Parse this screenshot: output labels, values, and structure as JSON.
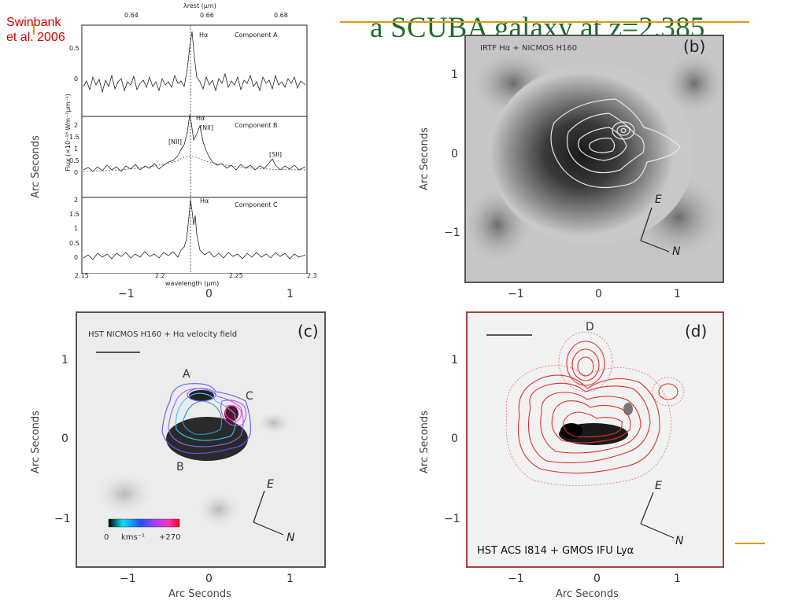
{
  "slide": {
    "title": "a SCUBA galaxy at z=2.385",
    "citation_line1": "Swinbank",
    "citation_line2": "et al.  2006",
    "accent_color": "#d89a10",
    "title_color": "#1f6b2b",
    "citation_color": "#d60000"
  },
  "panel_a": {
    "top_axis_label": "λrest (μm)",
    "top_ticks": [
      "0.64",
      "0.66",
      "0.68"
    ],
    "bottom_ticks": [
      "2.15",
      "2.2",
      "2.25",
      "2.3"
    ],
    "xlabel": "wavelength (μm)",
    "ylabel": "Flux (×10⁻¹⁸ Wm⁻²μm⁻¹)",
    "components": [
      {
        "name": "Component A",
        "line": "Hα",
        "yticks": [
          "0.5",
          "0"
        ]
      },
      {
        "name": "Component B",
        "line": "Hα",
        "extra_lines": [
          "[NII]",
          "[NII]",
          "[SII]"
        ],
        "yticks": [
          "2",
          "1.5",
          "1",
          "0.5",
          "0"
        ]
      },
      {
        "name": "Component C",
        "line": "Hα",
        "yticks": [
          "2",
          "1.5",
          "1",
          "0.5",
          "0"
        ]
      }
    ]
  },
  "panel_b": {
    "label": "(b)",
    "caption": "IRTF Hα + NICMOS H160",
    "yticks": [
      "1",
      "0",
      "−1"
    ],
    "xticks": [
      "−1",
      "0",
      "1"
    ],
    "ylabel": "Arc Seconds",
    "compass_e": "E",
    "compass_n": "N"
  },
  "panel_c": {
    "label": "(c)",
    "caption": "HST NICMOS H160 + Hα velocity field",
    "region_labels": [
      "A",
      "B",
      "C"
    ],
    "yticks": [
      "1",
      "0",
      "−1"
    ],
    "xticks": [
      "−1",
      "0",
      "1"
    ],
    "ylabel": "Arc Seconds",
    "xlabel": "Arc Seconds",
    "colorbar_min": "0",
    "colorbar_unit": "kms⁻¹",
    "colorbar_max": "+270",
    "compass_e": "E",
    "compass_n": "N"
  },
  "panel_d": {
    "label": "(d)",
    "caption": "HST ACS I814 + GMOS IFU Lyα",
    "region_label": "D",
    "yticks": [
      "1",
      "0",
      "−1"
    ],
    "xticks": [
      "−1",
      "0",
      "1"
    ],
    "ylabel": "Arc Seconds",
    "xlabel": "Arc Seconds",
    "compass_e": "E",
    "compass_n": "N"
  },
  "top_left_ylabel": "Arc Seconds",
  "top_left_xticks": [
    "−1",
    "0",
    "1"
  ]
}
